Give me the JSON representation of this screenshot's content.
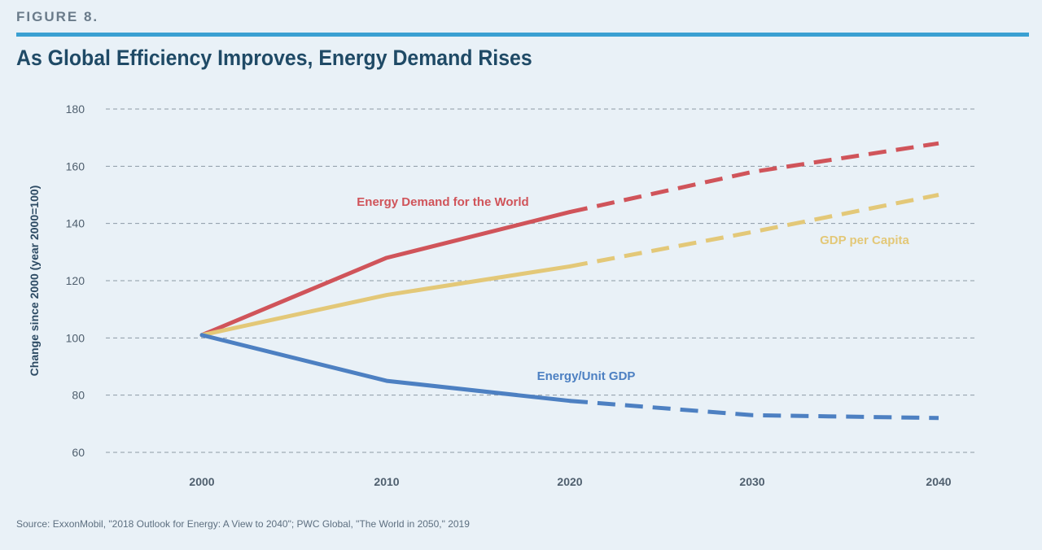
{
  "figure_label": "FIGURE 8.",
  "title": "As Global Efficiency Improves, Energy Demand Rises",
  "source": "Source: ExxonMobil, \"2018 Outlook for Energy: A View to 2040\"; PWC Global, \"The World in 2050,\" 2019",
  "chart_data": {
    "type": "line",
    "ylabel": "Change since 2000 (year 2000=100)",
    "xlabel": "",
    "x": [
      2000,
      2010,
      2020,
      2030,
      2040
    ],
    "x_tick_labels": [
      "2000",
      "2010",
      "2020",
      "2030",
      "2040"
    ],
    "y_ticks": [
      60,
      80,
      100,
      120,
      140,
      160,
      180
    ],
    "ylim": [
      60,
      180
    ],
    "grid": "horizontal dashed",
    "projection_starts": 2020,
    "series": [
      {
        "name": "Energy Demand for the World",
        "color": "#d0545a",
        "points": [
          [
            2000,
            101
          ],
          [
            2010,
            128
          ],
          [
            2020,
            144
          ],
          [
            2030,
            158
          ],
          [
            2040,
            168
          ]
        ]
      },
      {
        "name": "GDP per Capita",
        "color": "#e3c878",
        "points": [
          [
            2000,
            101
          ],
          [
            2010,
            115
          ],
          [
            2020,
            125
          ],
          [
            2030,
            137
          ],
          [
            2040,
            150
          ]
        ]
      },
      {
        "name": "Energy/Unit GDP",
        "color": "#4d80c2",
        "points": [
          [
            2000,
            101
          ],
          [
            2010,
            85
          ],
          [
            2020,
            78
          ],
          [
            2030,
            73
          ],
          [
            2040,
            72
          ]
        ]
      }
    ]
  }
}
